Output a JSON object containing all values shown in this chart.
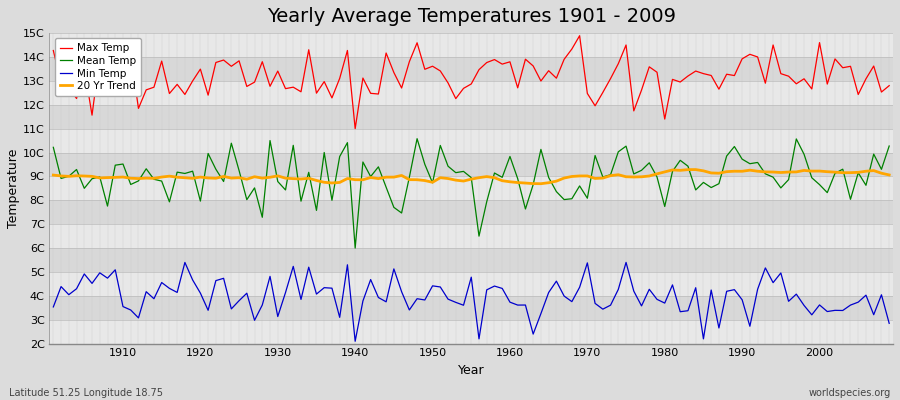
{
  "title": "Yearly Average Temperatures 1901 - 2009",
  "xlabel": "Year",
  "ylabel": "Temperature",
  "bottom_left": "Latitude 51.25 Longitude 18.75",
  "bottom_right": "worldspecies.org",
  "year_start": 1901,
  "year_end": 2009,
  "ylim": [
    2,
    15
  ],
  "yticks": [
    2,
    3,
    4,
    5,
    6,
    7,
    8,
    9,
    10,
    11,
    12,
    13,
    14,
    15
  ],
  "ytick_labels": [
    "2C",
    "3C",
    "4C",
    "5C",
    "6C",
    "7C",
    "8C",
    "9C",
    "10C",
    "11C",
    "12C",
    "13C",
    "14C",
    "15C"
  ],
  "legend_entries": [
    "Max Temp",
    "Mean Temp",
    "Min Temp",
    "20 Yr Trend"
  ],
  "legend_colors": [
    "#ff0000",
    "#008000",
    "#0000cc",
    "#ffa500"
  ],
  "background_color": "#dcdcdc",
  "plot_bg_color": "#e8e8e8",
  "band_light": "#e8e8e8",
  "band_dark": "#d8d8d8",
  "grid_line_color": "#cccccc",
  "title_fontsize": 14,
  "label_fontsize": 9,
  "tick_fontsize": 8,
  "line_width": 0.9
}
